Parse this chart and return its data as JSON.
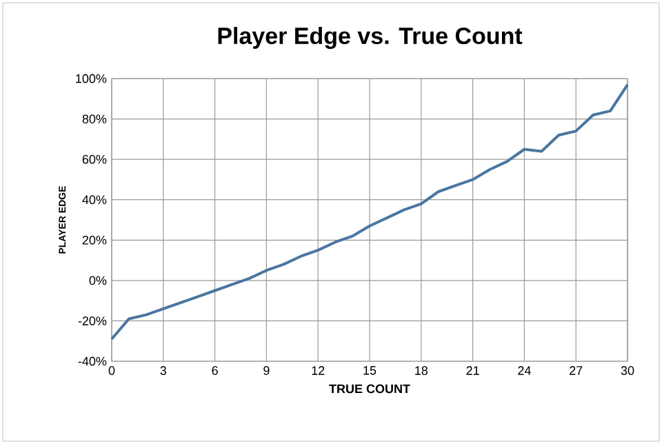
{
  "chart_data": {
    "type": "line",
    "title": "Player Edge vs. True Count",
    "xlabel": "TRUE COUNT",
    "ylabel": "PLAYER EDGE",
    "x": [
      0,
      1,
      2,
      3,
      4,
      5,
      6,
      7,
      8,
      9,
      10,
      11,
      12,
      13,
      14,
      15,
      16,
      17,
      18,
      19,
      20,
      21,
      22,
      23,
      24,
      25,
      26,
      27,
      28,
      29,
      30
    ],
    "series": [
      {
        "color": "#4a76a0",
        "values": [
          -29,
          -19,
          -17,
          -14,
          -11,
          -8,
          -5,
          -2,
          1,
          5,
          8,
          12,
          15,
          19,
          22,
          27,
          31,
          35,
          38,
          44,
          47,
          50,
          55,
          59,
          65,
          64,
          72,
          74,
          82,
          84,
          97
        ]
      }
    ],
    "xlim": [
      0,
      30
    ],
    "xticks": [
      0,
      3,
      6,
      9,
      12,
      15,
      18,
      21,
      24,
      27,
      30
    ],
    "ylim": [
      -40,
      100
    ],
    "yticks": [
      {
        "value": -40,
        "label": "-40%"
      },
      {
        "value": -20,
        "label": "-20%"
      },
      {
        "value": 0,
        "label": "0%"
      },
      {
        "value": 20,
        "label": "20%"
      },
      {
        "value": 40,
        "label": "40%"
      },
      {
        "value": 60,
        "label": "60%"
      },
      {
        "value": 80,
        "label": "80%"
      },
      {
        "value": 100,
        "label": "100%"
      }
    ],
    "grid": true,
    "marker": "none",
    "line_style": "solid"
  }
}
